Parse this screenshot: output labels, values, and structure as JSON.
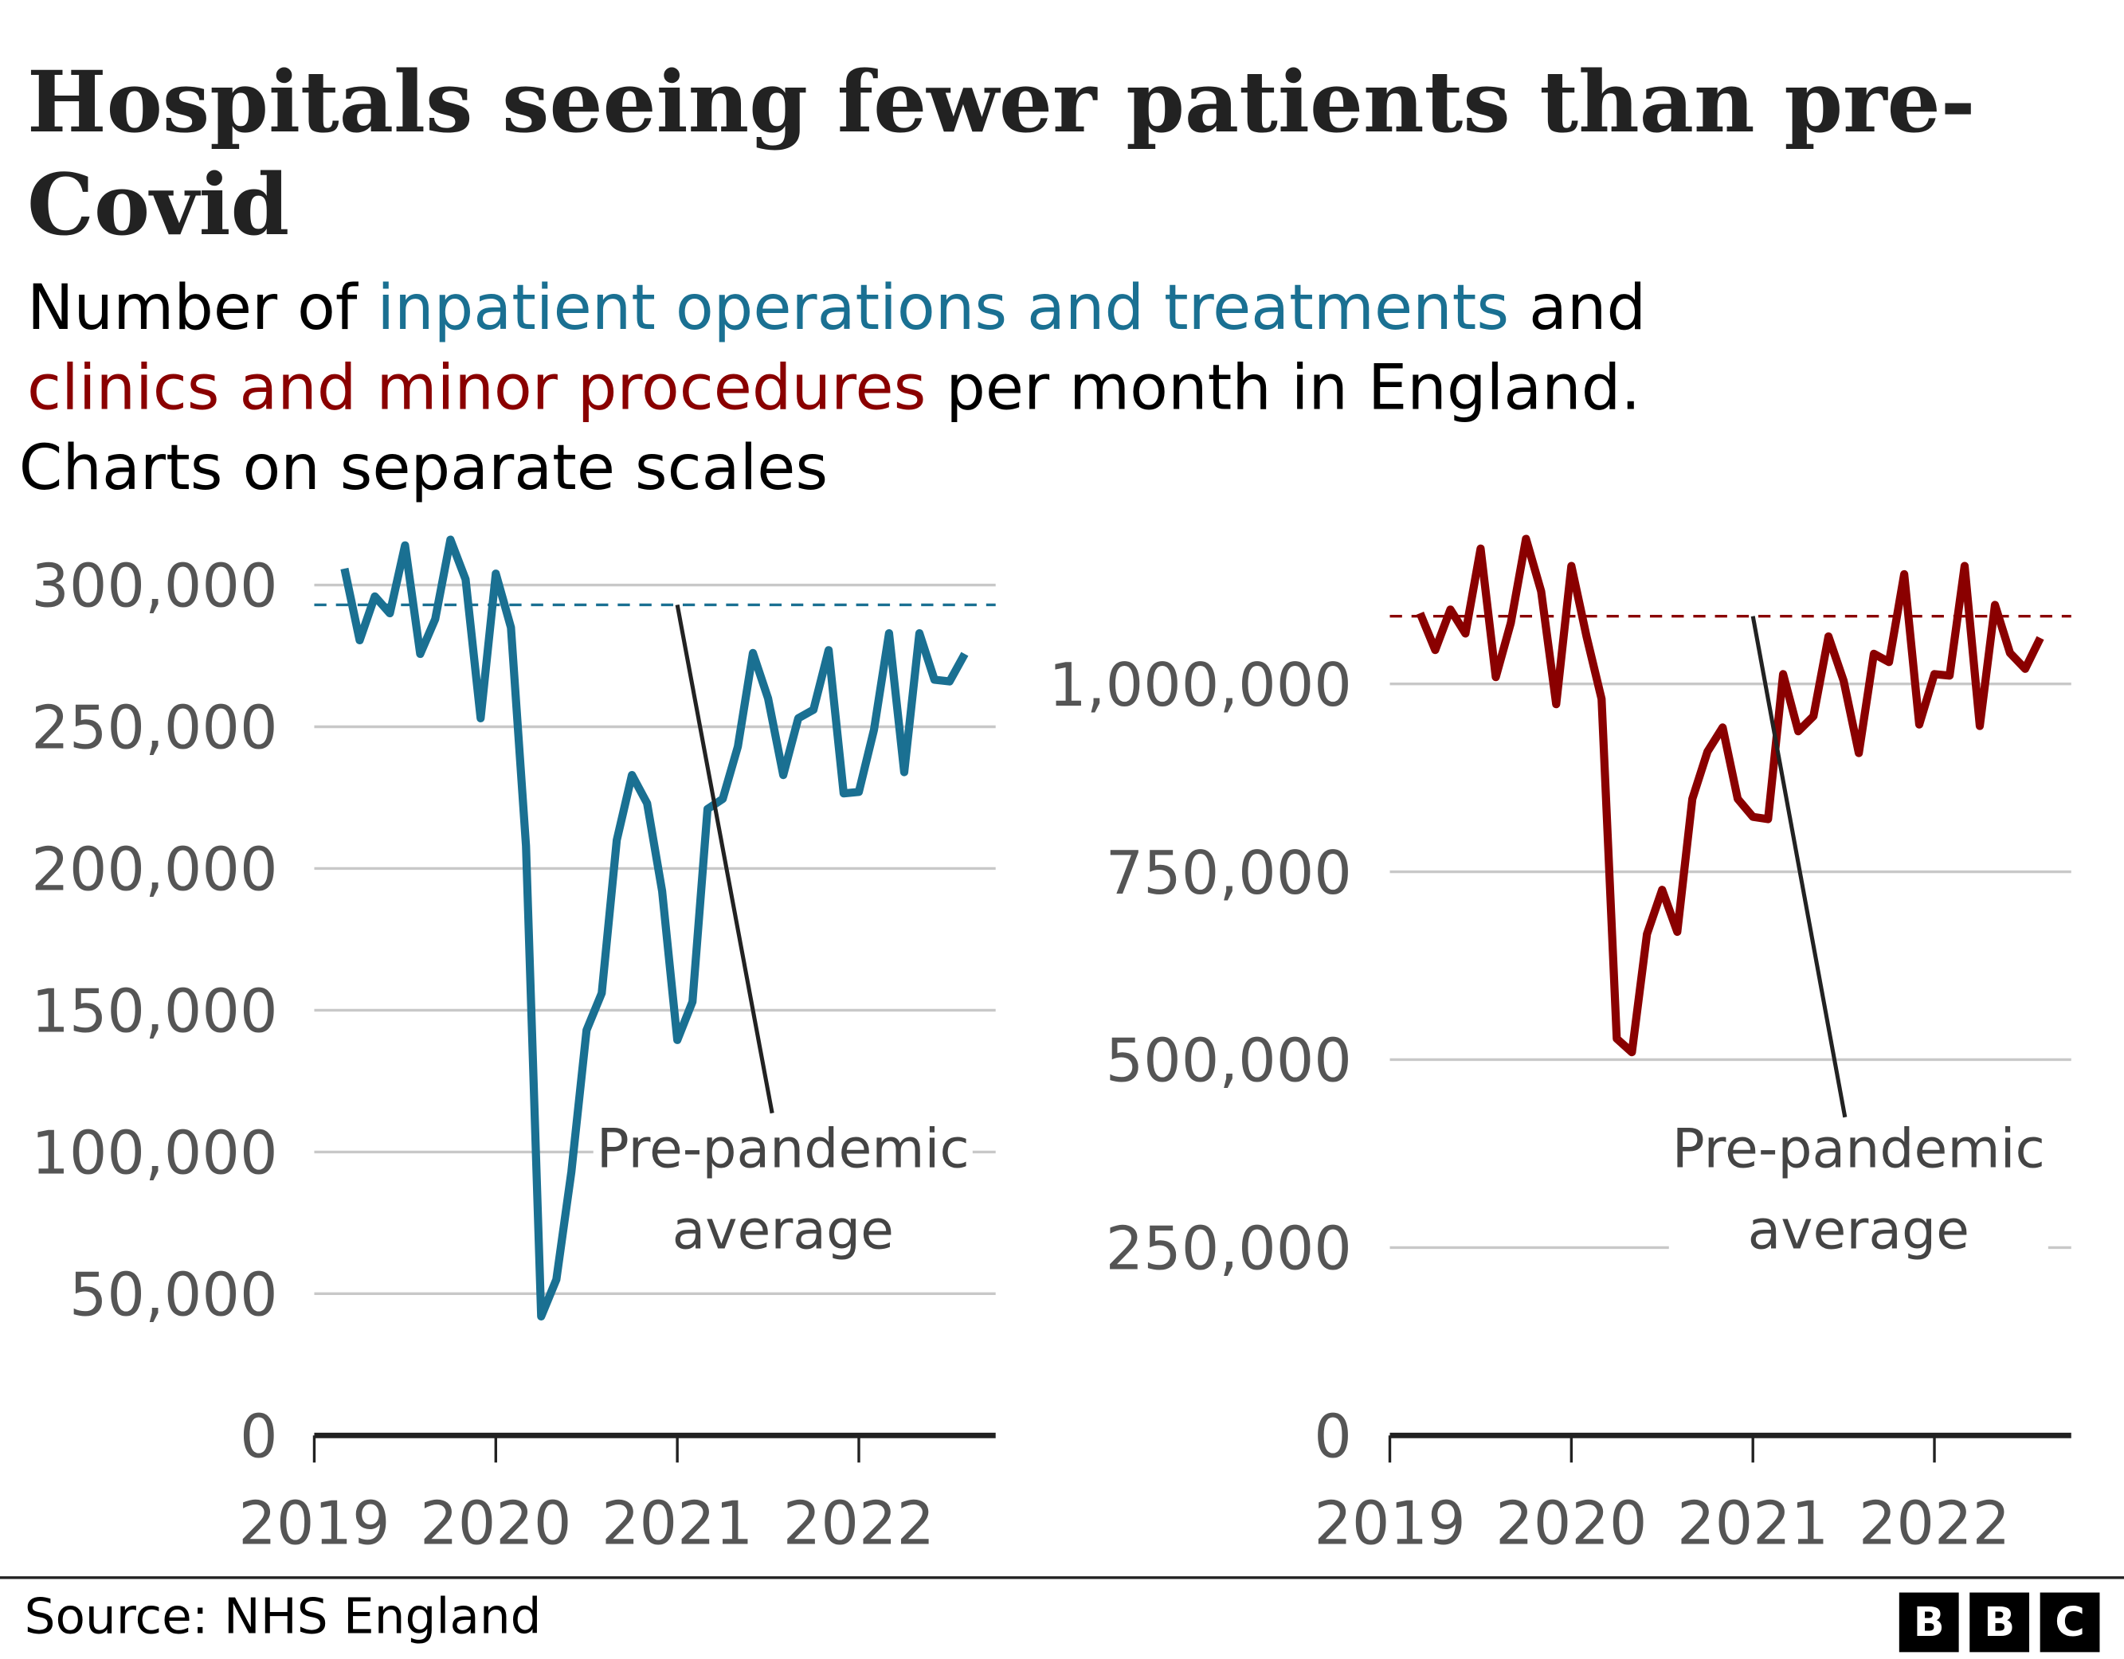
{
  "header": {
    "title": "Hospitals seeing fewer patients than pre-Covid",
    "subtitle_parts": [
      "Number of ",
      "inpatient operations and treatments",
      " and ",
      "clinics and minor procedures",
      " per month in England."
    ],
    "note": "Charts on separate scales"
  },
  "colors": {
    "inpatient": "#1a7092",
    "clinics": "#8a0000",
    "grid": "#c8c8c8",
    "axis": "#222222",
    "tick_text": "#555555"
  },
  "footer": {
    "source": "Source: NHS England",
    "logo_letters": [
      "B",
      "B",
      "C"
    ]
  },
  "chart_data": [
    {
      "type": "line",
      "series_name": "inpatient operations and treatments",
      "x_start": "2019-03",
      "x_end": "2022-08",
      "x_ticks": [
        "2019",
        "2020",
        "2021",
        "2022"
      ],
      "y_ticks": [
        0,
        50000,
        100000,
        150000,
        200000,
        250000,
        300000
      ],
      "y_tick_labels": [
        "0",
        "50,000",
        "100,000",
        "150,000",
        "200,000",
        "250,000",
        "300,000"
      ],
      "ylim": [
        0,
        300000
      ],
      "grid": true,
      "values": [
        305800,
        280500,
        296000,
        290000,
        314000,
        275700,
        288000,
        316000,
        302000,
        253000,
        304000,
        285000,
        208000,
        42000,
        55000,
        93000,
        143000,
        156000,
        210000,
        233000,
        223000,
        192000,
        139500,
        153000,
        221000,
        224500,
        243000,
        276000,
        260000,
        233000,
        253000,
        256000,
        277000,
        226500,
        227000,
        249000,
        283000,
        234000,
        283000,
        266600,
        266000,
        275700
      ],
      "reference_line": {
        "value": 293000,
        "style": "dashed",
        "label": "Pre-pandemic average"
      }
    },
    {
      "type": "line",
      "series_name": "clinics and minor procedures",
      "x_start": "2019-03",
      "x_end": "2022-08",
      "x_ticks": [
        "2019",
        "2020",
        "2021",
        "2022"
      ],
      "y_ticks": [
        0,
        250000,
        500000,
        750000,
        1000000
      ],
      "y_tick_labels": [
        "0",
        "250,000",
        "500,000",
        "750,000",
        "1,000,000"
      ],
      "ylim": [
        0,
        1000000
      ],
      "grid": true,
      "values": [
        1094000,
        1045000,
        1099000,
        1067000,
        1180000,
        1009000,
        1081000,
        1193000,
        1123000,
        973000,
        1157000,
        1063000,
        980000,
        528000,
        510000,
        667000,
        726000,
        670000,
        847000,
        910000,
        942000,
        847000,
        823000,
        820000,
        1013000,
        937000,
        957000,
        1063000,
        1004000,
        908000,
        1040000,
        1029000,
        1146000,
        946000,
        1013000,
        1011000,
        1157000,
        944000,
        1105000,
        1041000,
        1020000,
        1061000
      ],
      "reference_line": {
        "value": 1090000,
        "style": "dashed",
        "label": "Pre-pandemic average"
      }
    }
  ]
}
